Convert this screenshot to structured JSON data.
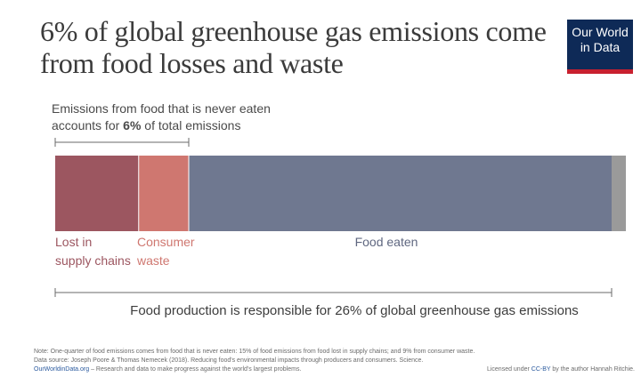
{
  "title_lines": [
    "6% of global greenhouse gas emissions come",
    "from food losses and waste"
  ],
  "logo": {
    "line1": "Our World",
    "line2": "in Data"
  },
  "colors": {
    "lost_in_supply_chains": "#9c5660",
    "consumer_waste": "#cf7770",
    "food_eaten": "#6f7890",
    "remainder": "#9a9a9a",
    "logo_background": "#0e2a57",
    "logo_accent": "#c8202f"
  },
  "chart_data": {
    "type": "bar",
    "orientation": "horizontal-stacked",
    "categories": [
      "Lost in supply chains",
      "Consumer waste",
      "Food eaten"
    ],
    "values": [
      15,
      9,
      76
    ],
    "unit": "%",
    "annotations": {
      "top_bracket_line1": "Emissions from food that is never eaten",
      "top_bracket_line2_prefix": "accounts for ",
      "top_bracket_line2_bold": "6%",
      "top_bracket_line2_suffix": " of total emissions",
      "bottom_bracket": "Food production is responsible for 26% of global greenhouse gas emissions"
    },
    "segment_labels": {
      "lost_line1": "Lost in",
      "lost_line2": "supply chains",
      "consumer_line1": "Consumer",
      "consumer_line2": "waste",
      "eaten": "Food eaten"
    }
  },
  "footnotes": {
    "note": "Note: One-quarter of food emissions comes from food that is never eaten: 15% of food emissions from food lost in supply chains; and 9% from consumer waste.",
    "source": "Data source: Joseph Poore & Thomas Nemecek (2018). Reducing food's environmental impacts through producers and consumers. Science.",
    "site": "OurWorldinData.org",
    "tagline": " – Research and data to make progress against the world's largest problems.",
    "license_prefix": "Licensed under ",
    "license_link": "CC-BY",
    "license_suffix": " by the author Hannah Ritchie."
  }
}
